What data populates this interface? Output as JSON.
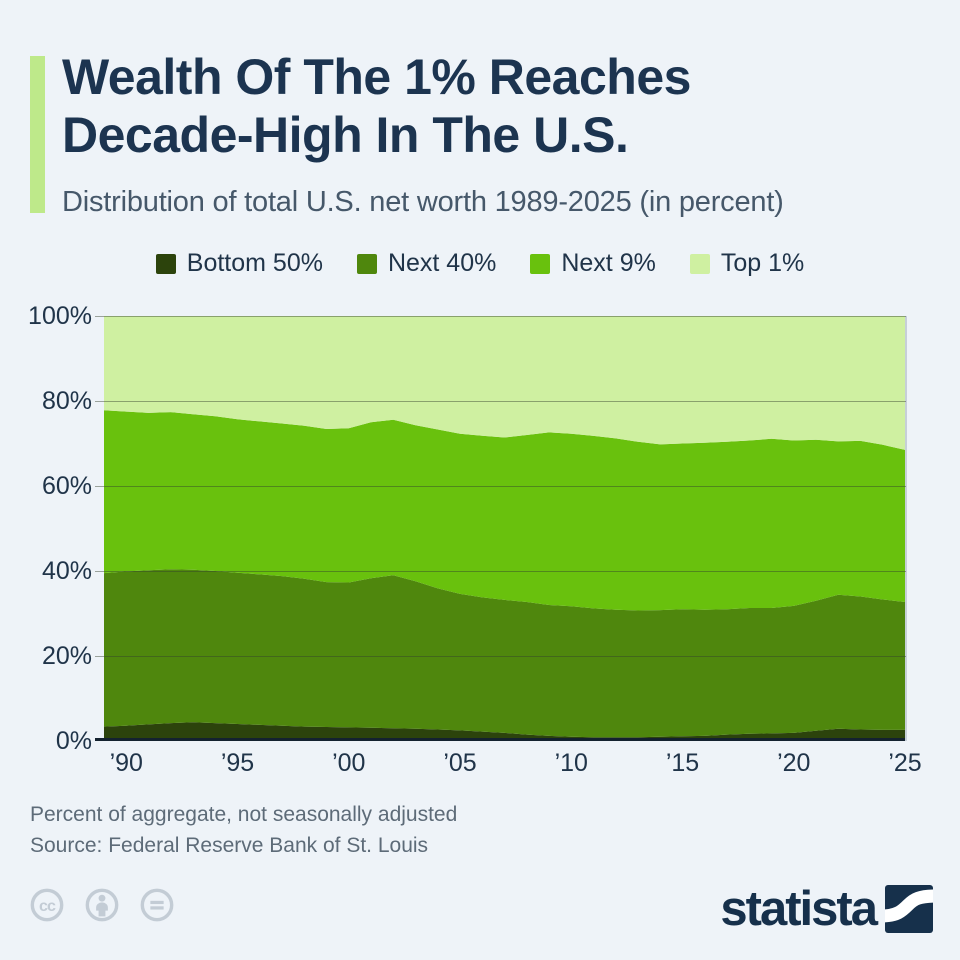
{
  "header": {
    "title_line1": "Wealth Of The 1% Reaches",
    "title_line2": "Decade-High In The U.S.",
    "subtitle": "Distribution of total U.S. net worth 1989-2025 (in percent)"
  },
  "legend": {
    "items": [
      {
        "label": "Bottom 50%",
        "color": "#2c430c"
      },
      {
        "label": "Next 40%",
        "color": "#4f870d"
      },
      {
        "label": "Next 9%",
        "color": "#69c10d"
      },
      {
        "label": "Top 1%",
        "color": "#cff0a1"
      }
    ]
  },
  "chart_data": {
    "type": "area",
    "stacked": true,
    "title": "Distribution of total U.S. net worth 1989-2025 (in percent)",
    "xlabel": "",
    "ylabel": "",
    "ylim": [
      0,
      100
    ],
    "grid": true,
    "legend_position": "top",
    "x": [
      1989,
      1990,
      1991,
      1992,
      1993,
      1994,
      1995,
      1996,
      1997,
      1998,
      1999,
      2000,
      2001,
      2002,
      2003,
      2004,
      2005,
      2006,
      2007,
      2008,
      2009,
      2010,
      2011,
      2012,
      2013,
      2014,
      2015,
      2016,
      2017,
      2018,
      2019,
      2020,
      2021,
      2022,
      2023,
      2024,
      2025
    ],
    "x_tick_years": [
      1990,
      1995,
      2000,
      2005,
      2010,
      2015,
      2020,
      2025
    ],
    "x_tick_labels": [
      "’90",
      "’95",
      "’00",
      "’05",
      "’10",
      "’15",
      "’20",
      "’25"
    ],
    "y_ticks": [
      0,
      20,
      40,
      60,
      80,
      100
    ],
    "y_tick_labels": [
      "0%",
      "20%",
      "40%",
      "60%",
      "80%",
      "100%"
    ],
    "series": [
      {
        "name": "Bottom 50%",
        "color": "#2c430c",
        "values": [
          3.4,
          3.6,
          3.9,
          4.2,
          4.4,
          4.2,
          4.0,
          3.8,
          3.6,
          3.4,
          3.3,
          3.2,
          3.1,
          3.0,
          2.9,
          2.7,
          2.5,
          2.2,
          1.9,
          1.5,
          1.2,
          1.0,
          0.9,
          0.9,
          0.9,
          1.0,
          1.1,
          1.2,
          1.5,
          1.7,
          1.8,
          1.9,
          2.4,
          2.9,
          2.7,
          2.6,
          2.6
        ]
      },
      {
        "name": "Next 40%",
        "color": "#4f870d",
        "values": [
          36.1,
          36.3,
          36.3,
          36.2,
          35.9,
          35.8,
          35.6,
          35.4,
          35.2,
          34.8,
          34.1,
          34.1,
          35.2,
          36.0,
          34.7,
          33.2,
          32.1,
          31.6,
          31.3,
          31.2,
          30.8,
          30.7,
          30.3,
          30.0,
          29.8,
          29.8,
          29.9,
          29.7,
          29.5,
          29.6,
          29.5,
          29.9,
          30.6,
          31.5,
          31.3,
          30.7,
          30.1
        ]
      },
      {
        "name": "Next 9%",
        "color": "#69c10d",
        "values": [
          38.3,
          37.6,
          37.0,
          37.0,
          36.6,
          36.4,
          36.1,
          36.0,
          35.9,
          36.0,
          36.0,
          36.3,
          36.7,
          36.6,
          36.7,
          37.4,
          37.7,
          38.0,
          38.2,
          39.3,
          40.6,
          40.6,
          40.6,
          40.3,
          39.7,
          39.0,
          39.0,
          39.3,
          39.4,
          39.4,
          39.8,
          38.9,
          37.9,
          36.1,
          36.6,
          36.4,
          35.8
        ]
      },
      {
        "name": "Top 1%",
        "color": "#cff0a1",
        "values": [
          22.2,
          22.5,
          22.8,
          22.6,
          23.1,
          23.6,
          24.3,
          24.8,
          25.3,
          25.8,
          26.6,
          26.4,
          25.0,
          24.4,
          25.7,
          26.7,
          27.7,
          28.2,
          28.6,
          28.0,
          27.4,
          27.7,
          28.2,
          28.8,
          29.6,
          30.2,
          30.0,
          29.8,
          29.6,
          29.3,
          28.9,
          29.3,
          29.1,
          29.5,
          29.4,
          30.3,
          31.5
        ]
      }
    ]
  },
  "footnotes": {
    "note": "Percent of aggregate, not seasonally adjusted",
    "source": "Source: Federal Reserve Bank of St. Louis"
  },
  "license": {
    "icon_names": [
      "cc-icon",
      "attribution-person-icon",
      "no-derivatives-equals-icon"
    ]
  },
  "branding": {
    "wordmark": "statista"
  }
}
